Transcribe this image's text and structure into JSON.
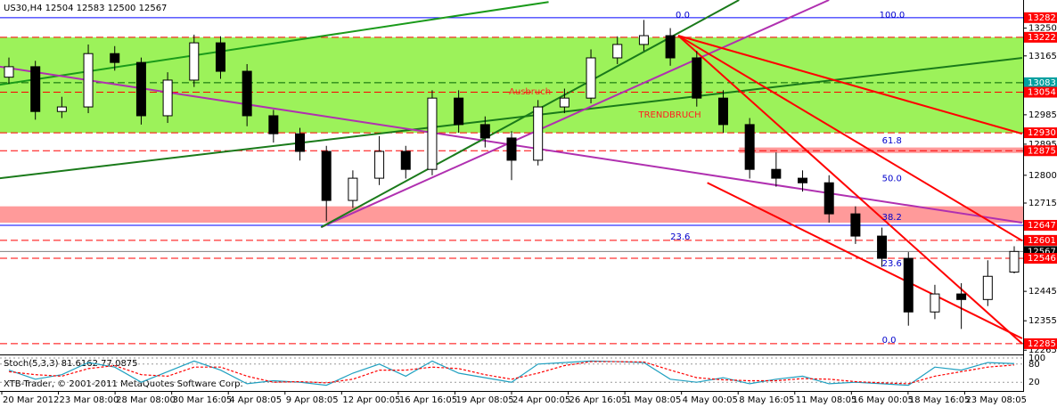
{
  "chart_data": {
    "type": "candlestick",
    "title": "US30,H4  12504 12583 12500 12567",
    "ylim": [
      12252,
      13336
    ],
    "yticks": [
      13250,
      13165,
      12985,
      12895,
      12800,
      12715,
      12445,
      12355,
      12265
    ],
    "open": [
      13100,
      13132,
      12995,
      13009,
      13172,
      13145,
      12982,
      13091,
      13205,
      13118,
      12982,
      12927,
      12873,
      12723,
      12791,
      12873,
      12818,
      13036,
      12955,
      12914,
      12846,
      13009,
      13036,
      13159,
      13200,
      13227,
      13159,
      13036,
      12955,
      12818,
      12791,
      12777,
      12682,
      12614,
      12546,
      12382,
      12437,
      12420,
      12504
    ],
    "high": [
      13160,
      13150,
      13040,
      13200,
      13195,
      13160,
      13115,
      13230,
      13225,
      13140,
      13000,
      12945,
      12890,
      12815,
      12920,
      12890,
      13060,
      13060,
      12980,
      12935,
      13030,
      13065,
      13185,
      13225,
      13275,
      13250,
      13180,
      13060,
      12975,
      12870,
      12815,
      12800,
      12705,
      12640,
      12565,
      12465,
      12470,
      12540,
      12583
    ],
    "low": [
      13080,
      12970,
      12975,
      12990,
      13120,
      12955,
      12960,
      13070,
      13095,
      12950,
      12900,
      12845,
      12660,
      12700,
      12770,
      12790,
      12800,
      12930,
      12885,
      12785,
      12830,
      12990,
      13020,
      13140,
      13180,
      13135,
      13010,
      12930,
      12790,
      12765,
      12750,
      12655,
      12590,
      12520,
      12340,
      12360,
      12330,
      12400,
      12500
    ],
    "close": [
      13132,
      12995,
      13009,
      13172,
      13145,
      12982,
      13091,
      13205,
      13118,
      12982,
      12927,
      12873,
      12723,
      12791,
      12873,
      12818,
      13036,
      12955,
      12914,
      12846,
      13009,
      13036,
      13159,
      13200,
      13227,
      13159,
      13036,
      12955,
      12818,
      12791,
      12777,
      12682,
      12614,
      12546,
      12382,
      12437,
      12420,
      12491,
      12567
    ],
    "up_color": "#ffffff",
    "down_color": "#000000",
    "x_labels": [
      "20 Mar 2012",
      "23 Mar 08:00",
      "28 Mar 08:00",
      "30 Mar 16:05",
      "4 Apr 08:05",
      "9 Apr 08:05",
      "12 Apr 00:05",
      "16 Apr 16:05",
      "19 Apr 08:05",
      "24 Apr 00:05",
      "26 Apr 16:05",
      "1 May 08:05",
      "4 May 00:05",
      "8 May 16:05",
      "11 May 08:05",
      "16 May 00:05",
      "18 May 16:05",
      "23 May 08:05"
    ],
    "zones": [
      {
        "low": 12930,
        "high": 13222,
        "color": "#9cf25a"
      },
      {
        "low": 12655,
        "high": 12705,
        "color": "#ff9a9a"
      },
      {
        "low": 12868,
        "high": 12885,
        "color": "#ff9a9a",
        "from": 27.6
      }
    ],
    "levels": [
      {
        "value": 13282,
        "color": "#0000ff",
        "dash": false,
        "box": "#ff0000"
      },
      {
        "value": 13222,
        "color": "#ff0000",
        "dash": true,
        "box": "#ff0000"
      },
      {
        "value": 13083,
        "color": "#006400",
        "dash": true,
        "box": "#00a0a0"
      },
      {
        "value": 13054,
        "color": "#ff0000",
        "dash": true,
        "box": "#ff0000"
      },
      {
        "value": 12930,
        "color": "#ff0000",
        "dash": true,
        "box": "#ff0000"
      },
      {
        "value": 12875,
        "color": "#ff0000",
        "dash": true,
        "box": "#ff0000"
      },
      {
        "value": 12647,
        "color": "#0000ff",
        "dash": false,
        "box": "#ff0000"
      },
      {
        "value": 12601,
        "color": "#ff0000",
        "dash": true,
        "box": "#ff0000"
      },
      {
        "value": 12567,
        "color": "#808080",
        "dash": false,
        "box": "#000000"
      },
      {
        "value": 12546,
        "color": "#ff0000",
        "dash": true,
        "box": "#ff0000"
      },
      {
        "value": 12285,
        "color": "#ff0000",
        "dash": true,
        "box": "#ff0000"
      }
    ],
    "trendlines": [
      {
        "from": [
          -0.34,
          12791
        ],
        "to": [
          38.3,
          13159
        ],
        "color": "#1a7a1a"
      },
      {
        "from": [
          -0.34,
          13077
        ],
        "to": [
          20.4,
          13330
        ],
        "color": "#1a9a1a"
      },
      {
        "from": [
          -0.34,
          13132
        ],
        "to": [
          38.3,
          12655
        ],
        "color": "#b030b0"
      },
      {
        "from": [
          11.8,
          12641
        ],
        "to": [
          31,
          13336
        ],
        "color": "#b030b0"
      },
      {
        "from": [
          11.8,
          12641
        ],
        "to": [
          27.6,
          13336
        ],
        "color": "#1a7a1a"
      },
      {
        "from": [
          25.3,
          13227
        ],
        "to": [
          38.3,
          12600
        ],
        "color": "#ff0000"
      },
      {
        "from": [
          25.3,
          13227
        ],
        "to": [
          38.3,
          12927
        ],
        "color": "#ff0000"
      },
      {
        "from": [
          26.4,
          12777
        ],
        "to": [
          38.3,
          12301
        ],
        "color": "#ff0000"
      },
      {
        "from": [
          25.3,
          13227
        ],
        "to": [
          38.3,
          12285
        ],
        "color": "#ff0000"
      }
    ],
    "fib_labels": [
      {
        "text": "0.0",
        "price": 13290,
        "at": 25.2
      },
      {
        "text": "100.0",
        "price": 13290,
        "at": 32.9
      },
      {
        "text": "61.8",
        "price": 12905,
        "at": 33
      },
      {
        "text": "50.0",
        "price": 12790,
        "at": 33
      },
      {
        "text": "38.2",
        "price": 12672,
        "at": 33
      },
      {
        "text": "23.6",
        "price": 12612,
        "at": 25
      },
      {
        "text": "23.6",
        "price": 12530,
        "at": 33
      },
      {
        "text": "0.0",
        "price": 12296,
        "at": 33
      }
    ],
    "annotations": [
      {
        "text": "Ausbruch",
        "price": 13055,
        "at": 18.9
      },
      {
        "text": "TRENDBRUCH",
        "price": 12985,
        "at": 23.8
      }
    ],
    "stoch": {
      "label": "Stoch(5,3,3) 81.6162 77.0875",
      "ylim": [
        0,
        100
      ],
      "yticks": [
        100,
        80,
        20
      ],
      "main": {
        "color": "#20a0c0",
        "values": [
          60,
          30,
          45,
          85,
          70,
          20,
          55,
          90,
          60,
          15,
          25,
          20,
          10,
          50,
          80,
          40,
          90,
          50,
          35,
          20,
          80,
          85,
          90,
          88,
          85,
          30,
          20,
          35,
          15,
          30,
          40,
          15,
          20,
          15,
          10,
          70,
          60,
          85,
          81.6162
        ]
      },
      "signal": {
        "color": "#ff0000",
        "values": [
          55,
          45,
          40,
          65,
          75,
          45,
          40,
          70,
          70,
          40,
          20,
          22,
          18,
          30,
          60,
          60,
          70,
          65,
          45,
          30,
          50,
          75,
          88,
          88,
          87,
          60,
          35,
          28,
          25,
          25,
          32,
          30,
          22,
          18,
          15,
          40,
          55,
          70,
          77.0875
        ]
      }
    },
    "copyright": "XTB-Trader, © 2001-2011 MetaQuotes Software Corp."
  }
}
